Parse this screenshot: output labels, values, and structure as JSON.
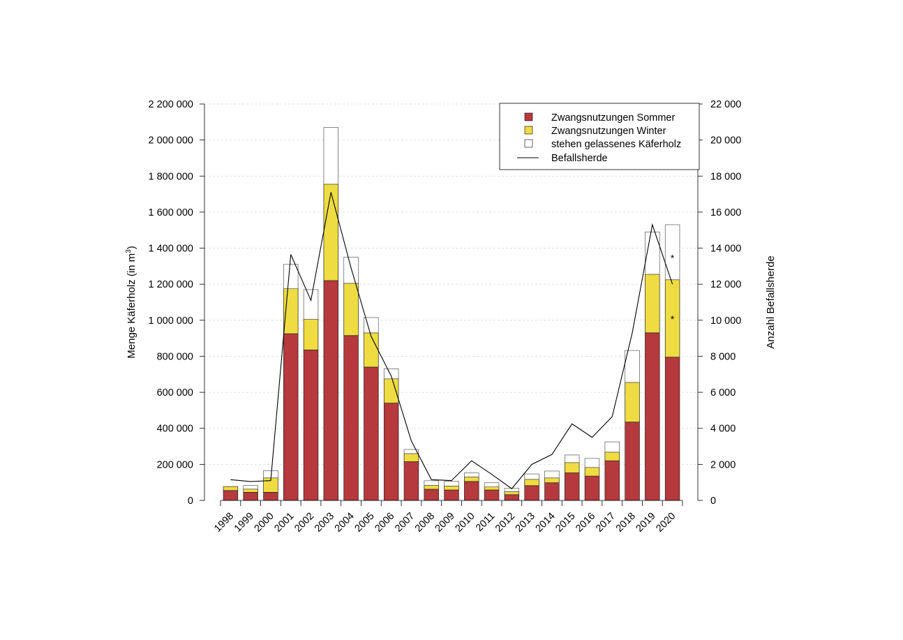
{
  "chart_data": {
    "type": "bar",
    "stacked": true,
    "categories": [
      "1998",
      "1999",
      "2000",
      "2001",
      "2002",
      "2003",
      "2004",
      "2005",
      "2006",
      "2007",
      "2008",
      "2009",
      "2010",
      "2011",
      "2012",
      "2013",
      "2014",
      "2015",
      "2016",
      "2017",
      "2018",
      "2019",
      "2020"
    ],
    "series": [
      {
        "name": "Zwangsnutzungen Sommer",
        "kind": "bar",
        "axis": "left",
        "color": "#b5393d",
        "values": [
          55000,
          45000,
          45000,
          925000,
          835000,
          1220000,
          915000,
          740000,
          540000,
          215000,
          62000,
          58000,
          105000,
          58000,
          32000,
          82000,
          98000,
          153000,
          135000,
          220000,
          435000,
          930000,
          795000
        ]
      },
      {
        "name": "Zwangsnutzungen Winter",
        "kind": "bar",
        "axis": "left",
        "color": "#eedc42",
        "values": [
          22000,
          18000,
          80000,
          250000,
          170000,
          535000,
          290000,
          190000,
          135000,
          45000,
          22000,
          22000,
          25000,
          17000,
          17000,
          35000,
          27000,
          57000,
          48000,
          48000,
          220000,
          325000,
          430000
        ]
      },
      {
        "name": "stehen gelassenes Käferholz",
        "kind": "bar",
        "axis": "left",
        "color": "#ffffff",
        "values": [
          0,
          20000,
          40000,
          135000,
          165000,
          315000,
          145000,
          85000,
          55000,
          23000,
          25000,
          26000,
          23000,
          23000,
          18000,
          30000,
          38000,
          42000,
          50000,
          57000,
          177000,
          235000,
          305000
        ]
      },
      {
        "name": "Befallsherde",
        "kind": "line",
        "axis": "right",
        "color": "#000000",
        "values": [
          1150,
          1050,
          1100,
          13650,
          11100,
          17100,
          12900,
          9100,
          6900,
          3300,
          1150,
          1100,
          2200,
          1450,
          650,
          2000,
          2550,
          4250,
          3500,
          4650,
          9300,
          15300,
          12000
        ]
      }
    ],
    "annotations": [
      {
        "category": "2020",
        "text": "*",
        "value": 1350000
      },
      {
        "category": "2020",
        "text": "*",
        "value": 1010000
      }
    ],
    "ylabel": "Menge Käferholz (in m",
    "ylabel_sup": "3",
    "ylabel_close": ")",
    "y2label": "Anzahl Befallsherde",
    "ylim": [
      0,
      2200000
    ],
    "y2lim": [
      0,
      22000
    ],
    "yticks": [
      0,
      200000,
      400000,
      600000,
      800000,
      1000000,
      1200000,
      1400000,
      1600000,
      1800000,
      2000000,
      2200000
    ],
    "ytick_labels": [
      "0",
      "200 000",
      "400 000",
      "600 000",
      "800 000",
      "1 000 000",
      "1 200 000",
      "1 400 000",
      "1 600 000",
      "1 800 000",
      "2 000 000",
      "2 200 000"
    ],
    "y2ticks": [
      0,
      2000,
      4000,
      6000,
      8000,
      10000,
      12000,
      14000,
      16000,
      18000,
      20000,
      22000
    ],
    "y2tick_labels": [
      "0",
      "2 000",
      "4 000",
      "6 000",
      "8 000",
      "10 000",
      "12 000",
      "14 000",
      "16 000",
      "18 000",
      "20 000",
      "22 000"
    ],
    "grid": "horizontal-dashed",
    "legend_position": "top-right",
    "legend": [
      {
        "label": "Zwangsnutzungen Sommer",
        "symbol": "square",
        "color": "#b5393d"
      },
      {
        "label": "Zwangsnutzungen Winter",
        "symbol": "square",
        "color": "#eedc42"
      },
      {
        "label": "stehen gelassenes Käferholz",
        "symbol": "square",
        "color": "#ffffff"
      },
      {
        "label": "Befallsherde",
        "symbol": "line",
        "color": "#000000"
      }
    ]
  }
}
